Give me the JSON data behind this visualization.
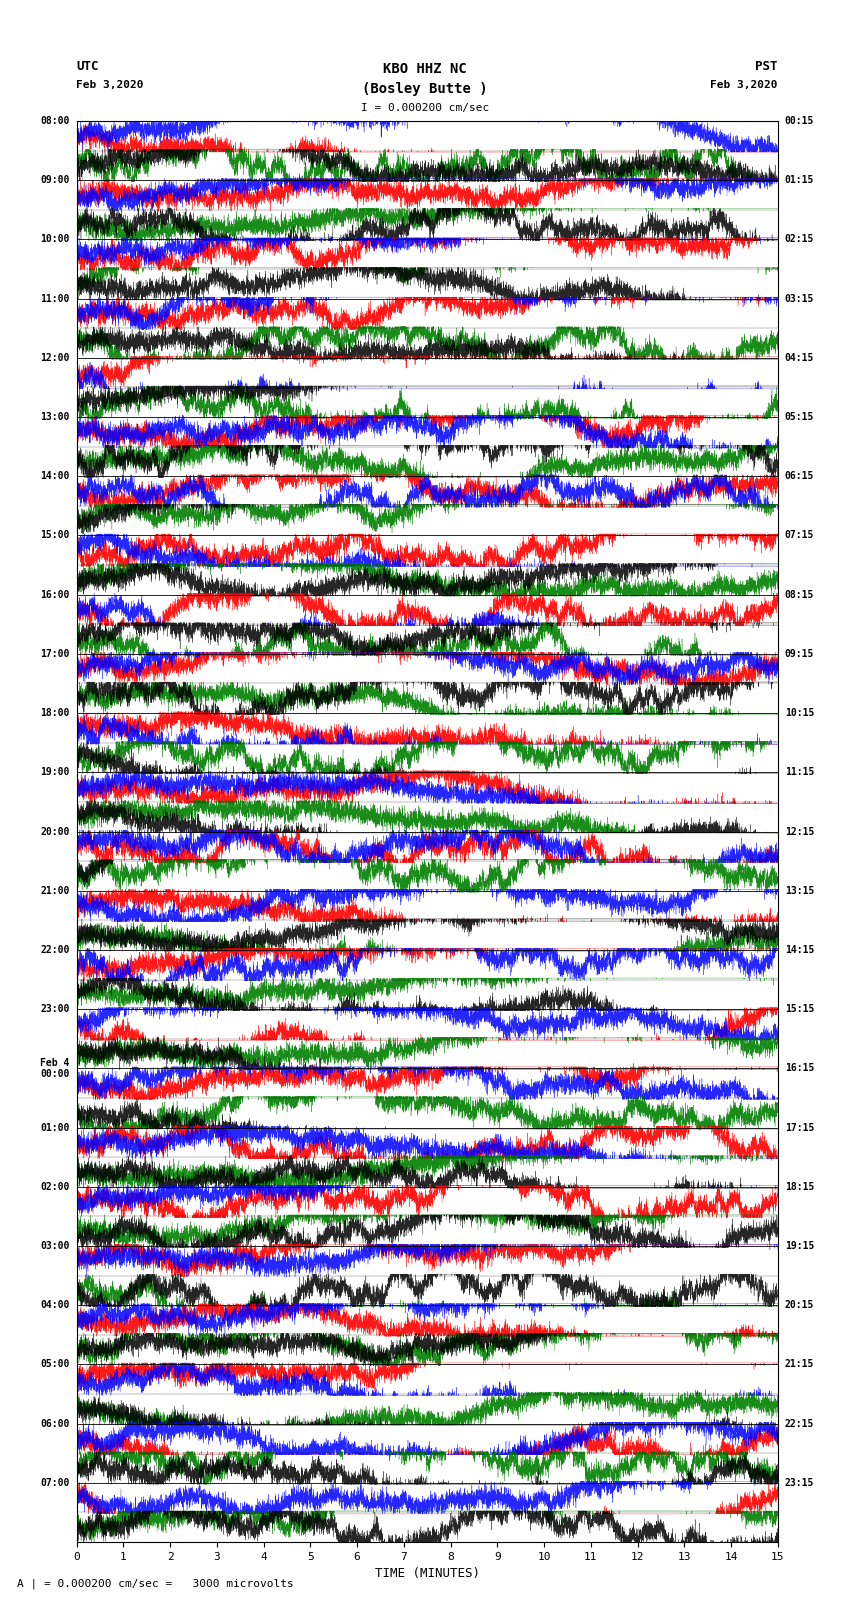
{
  "title_line1": "KBO HHZ NC",
  "title_line2": "(Bosley Butte )",
  "scale_text": "I = 0.000200 cm/sec",
  "utc_label": "UTC",
  "utc_date": "Feb 3,2020",
  "pst_label": "PST",
  "pst_date": "Feb 3,2020",
  "bottom_label": "A | = 0.000200 cm/sec =   3000 microvolts",
  "xlabel": "TIME (MINUTES)",
  "left_times_utc": [
    "08:00",
    "09:00",
    "10:00",
    "11:00",
    "12:00",
    "13:00",
    "14:00",
    "15:00",
    "16:00",
    "17:00",
    "18:00",
    "19:00",
    "20:00",
    "21:00",
    "22:00",
    "23:00",
    "Feb 4\n00:00",
    "01:00",
    "02:00",
    "03:00",
    "04:00",
    "05:00",
    "06:00",
    "07:00"
  ],
  "right_times_pst": [
    "00:15",
    "01:15",
    "02:15",
    "03:15",
    "04:15",
    "05:15",
    "06:15",
    "07:15",
    "08:15",
    "09:15",
    "10:15",
    "11:15",
    "12:15",
    "13:15",
    "14:15",
    "15:15",
    "16:15",
    "17:15",
    "18:15",
    "19:15",
    "20:15",
    "21:15",
    "22:15",
    "23:15"
  ],
  "n_hours": 24,
  "colors_top": [
    "red",
    "blue",
    "white"
  ],
  "colors_bottom": [
    "green",
    "black",
    "white"
  ],
  "bg_color": "white",
  "fig_width": 8.5,
  "fig_height": 16.13,
  "dpi": 100,
  "xmin": 0,
  "xmax": 15,
  "xticks": [
    0,
    1,
    2,
    3,
    4,
    5,
    6,
    7,
    8,
    9,
    10,
    11,
    12,
    13,
    14,
    15
  ]
}
